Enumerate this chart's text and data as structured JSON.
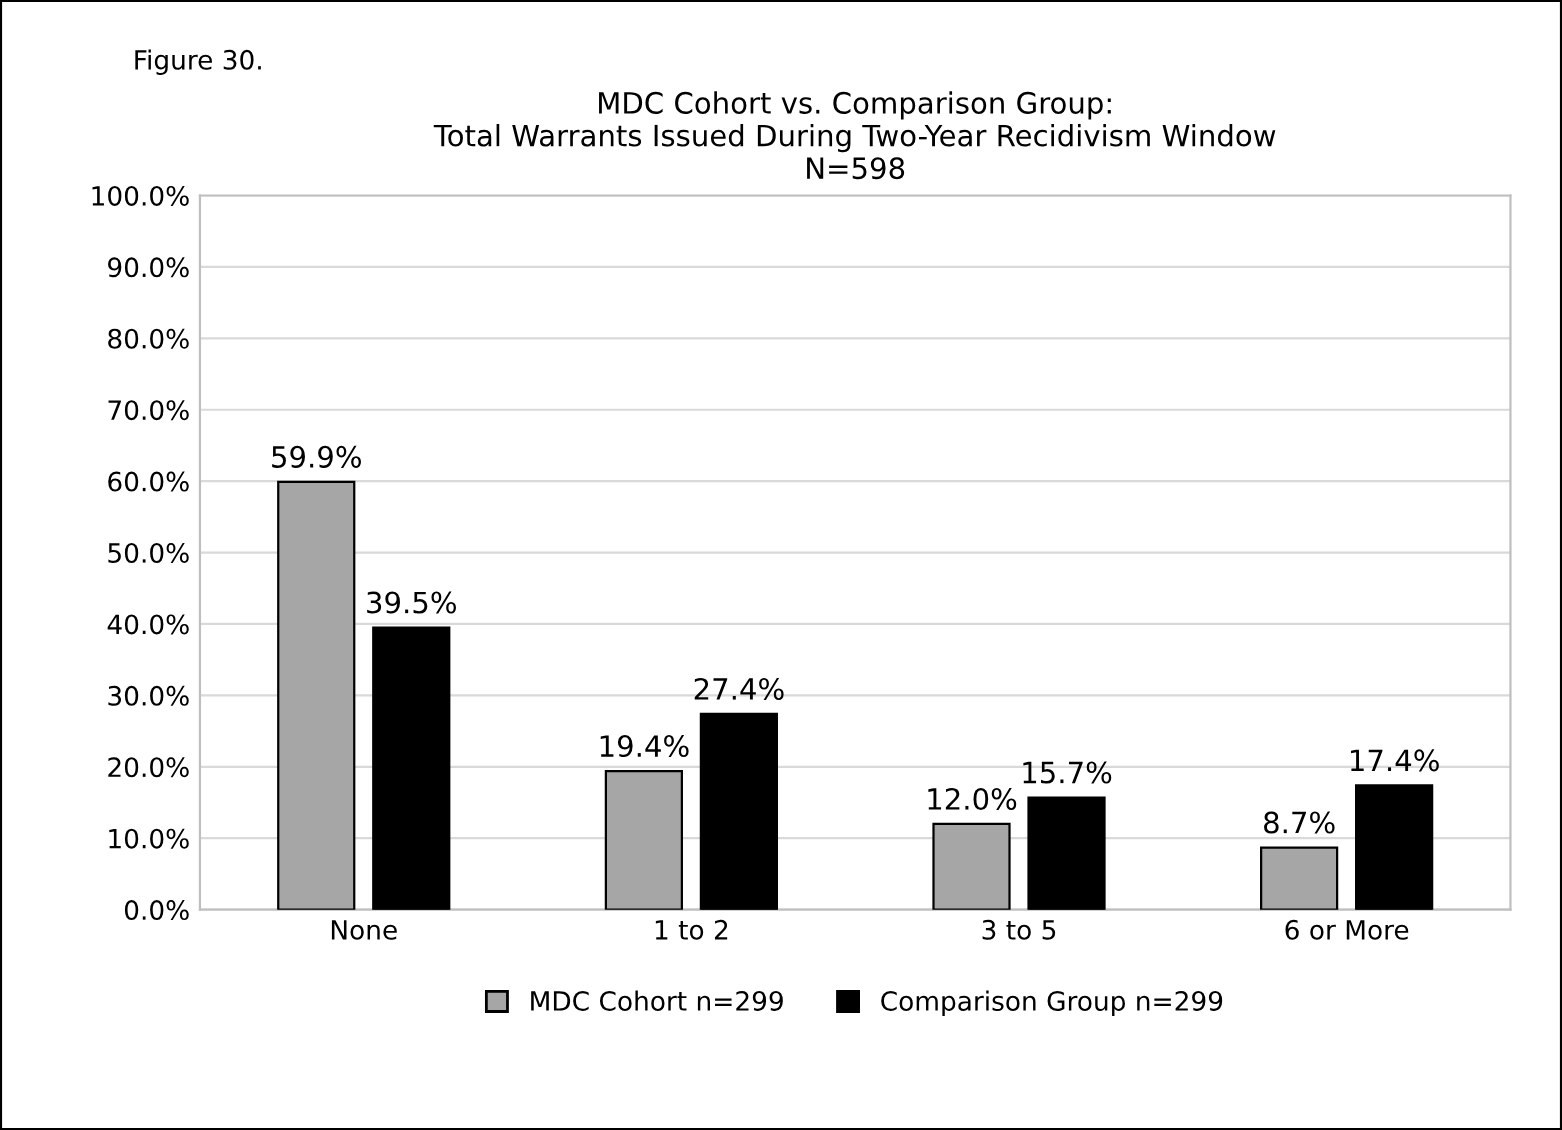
{
  "chart_data": {
    "type": "bar",
    "title": "MDC Cohort vs. Comparison Group:\nTotal Warrants Issued During Two-Year Recidivism Window\nN=598",
    "annotations": [
      "Figure 30."
    ],
    "categories": [
      "None",
      "1 to 2",
      "3 to 5",
      "6 or More"
    ],
    "series": [
      {
        "name": "MDC Cohort n=299",
        "color": "#a6a6a6",
        "values": [
          59.9,
          19.4,
          12.0,
          8.7
        ],
        "value_labels": [
          "59.9%",
          "19.4%",
          "12.0%",
          "8.7%"
        ]
      },
      {
        "name": "Comparison Group n=299",
        "color": "#000000",
        "values": [
          39.5,
          27.4,
          15.7,
          17.4
        ],
        "value_labels": [
          "39.5%",
          "27.4%",
          "15.7%",
          "17.4%"
        ]
      }
    ],
    "ylim": [
      0,
      100
    ],
    "yticks": [
      {
        "value": 0,
        "label": "0.0%"
      },
      {
        "value": 10,
        "label": "10.0%"
      },
      {
        "value": 20,
        "label": "20.0%"
      },
      {
        "value": 30,
        "label": "30.0%"
      },
      {
        "value": 40,
        "label": "40.0%"
      },
      {
        "value": 50,
        "label": "50.0%"
      },
      {
        "value": 60,
        "label": "60.0%"
      },
      {
        "value": 70,
        "label": "70.0%"
      },
      {
        "value": 80,
        "label": "80.0%"
      },
      {
        "value": 90,
        "label": "90.0%"
      },
      {
        "value": 100,
        "label": "100.0%"
      }
    ],
    "grid": "y",
    "legend": "bottom"
  }
}
